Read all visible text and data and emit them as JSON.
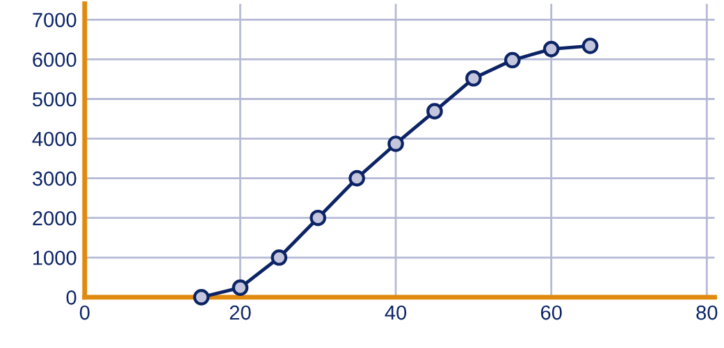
{
  "chart_data": {
    "type": "line",
    "x": [
      15,
      20,
      25,
      30,
      35,
      40,
      45,
      50,
      55,
      60,
      65
    ],
    "series": [
      {
        "color": "#0c2466",
        "values": [
          0,
          240,
          1000,
          2000,
          3000,
          3870,
          4690,
          5520,
          5980,
          6260,
          6340
        ]
      }
    ],
    "xlim": [
      0,
      81
    ],
    "xticks": [
      0,
      20,
      40,
      60,
      80
    ],
    "ylim": [
      0,
      7400
    ],
    "yticks": [
      0,
      1000,
      2000,
      3000,
      4000,
      5000,
      6000,
      7000
    ],
    "grid": true,
    "marker": "circle",
    "line_style": "solid",
    "legend": false
  }
}
